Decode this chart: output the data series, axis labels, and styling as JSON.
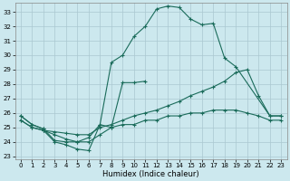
{
  "xlabel": "Humidex (Indice chaleur)",
  "xlim": [
    -0.5,
    23.5
  ],
  "ylim": [
    22.8,
    33.6
  ],
  "yticks": [
    23,
    24,
    25,
    26,
    27,
    28,
    29,
    30,
    31,
    32,
    33
  ],
  "xticks": [
    0,
    1,
    2,
    3,
    4,
    5,
    6,
    7,
    8,
    9,
    10,
    11,
    12,
    13,
    14,
    15,
    16,
    17,
    18,
    19,
    20,
    21,
    22,
    23
  ],
  "bg_color": "#cce8ee",
  "grid_color": "#aac8d0",
  "line_color": "#1a6b5a",
  "line1_y": [
    25.8,
    25.2,
    null,
    null,
    null,
    null,
    null,
    null,
    null,
    null,
    null,
    null,
    null,
    null,
    null,
    null,
    null,
    null,
    null,
    null,
    null,
    null,
    null,
    null
  ],
  "main_line_x": [
    0,
    1,
    2,
    3,
    4,
    5,
    6,
    7,
    8,
    9,
    10,
    11,
    12,
    13,
    14,
    15,
    16,
    17,
    18,
    19,
    22,
    23
  ],
  "main_line_y": [
    25.8,
    25.2,
    24.9,
    24.1,
    24.0,
    24.0,
    24.3,
    25.2,
    29.5,
    30.0,
    31.3,
    32.0,
    33.2,
    33.4,
    33.3,
    32.5,
    32.1,
    32.2,
    29.8,
    29.2,
    25.8,
    25.8
  ],
  "line_a_x": [
    2,
    3,
    4,
    5,
    6,
    7,
    8,
    9,
    10,
    11
  ],
  "line_a_y": [
    24.8,
    24.0,
    23.8,
    23.5,
    23.4,
    25.2,
    25.0,
    28.1,
    28.1,
    28.2
  ],
  "line_b_x": [
    0,
    1,
    2,
    3,
    4,
    5,
    6,
    7,
    8,
    9,
    10,
    11,
    12,
    13,
    14,
    15,
    16,
    17,
    18,
    19,
    20,
    21,
    22,
    23
  ],
  "line_b_y": [
    25.5,
    25.0,
    24.8,
    24.7,
    24.6,
    24.5,
    24.5,
    25.0,
    25.2,
    25.5,
    25.8,
    26.0,
    26.2,
    26.5,
    26.8,
    27.2,
    27.5,
    27.8,
    28.2,
    28.8,
    29.0,
    27.2,
    25.8,
    25.8
  ],
  "line_c_x": [
    0,
    1,
    2,
    3,
    4,
    5,
    6,
    7,
    8,
    9,
    10,
    11,
    12,
    13,
    14,
    15,
    16,
    17,
    18,
    19,
    20,
    21,
    22,
    23
  ],
  "line_c_y": [
    25.5,
    25.0,
    24.8,
    24.5,
    24.2,
    24.0,
    24.0,
    24.5,
    25.0,
    25.2,
    25.2,
    25.5,
    25.5,
    25.8,
    25.8,
    26.0,
    26.0,
    26.2,
    26.2,
    26.2,
    26.0,
    25.8,
    25.5,
    25.5
  ]
}
